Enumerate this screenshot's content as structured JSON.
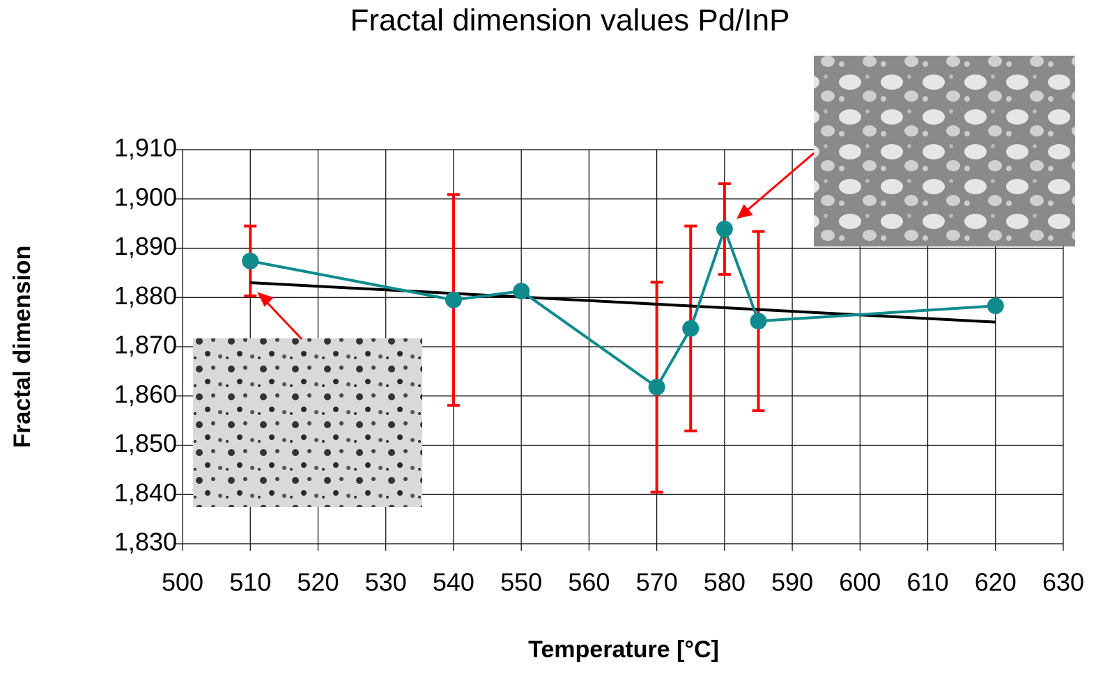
{
  "chart_data": {
    "type": "line",
    "title": "Fractal dimension values Pd/InP",
    "x_label": "Temperature [°C]",
    "y_label": "Fractal dimension",
    "x": [
      510,
      540,
      550,
      570,
      575,
      580,
      585,
      620
    ],
    "series": [
      {
        "color": "#0f8b8d",
        "values": [
          1.8874,
          1.8795,
          1.8813,
          1.8618,
          1.8737,
          1.8939,
          1.8752,
          1.8783
        ],
        "errors": [
          0.0071,
          0.0214,
          null,
          0.0213,
          0.0208,
          0.0092,
          0.0182,
          null
        ],
        "error_color": "#ff0000"
      }
    ],
    "trendline": {
      "color": "#000000",
      "x": [
        510,
        620
      ],
      "values": [
        1.883,
        1.875
      ]
    },
    "xlim": [
      500,
      630
    ],
    "xticks": [
      500,
      510,
      520,
      530,
      540,
      550,
      560,
      570,
      580,
      590,
      600,
      610,
      620,
      630
    ],
    "ylim": [
      1.83,
      1.91
    ],
    "yticks": [
      {
        "value": 1.83,
        "label": "1,830"
      },
      {
        "value": 1.84,
        "label": "1,840"
      },
      {
        "value": 1.85,
        "label": "1,850"
      },
      {
        "value": 1.86,
        "label": "1,860"
      },
      {
        "value": 1.87,
        "label": "1,870"
      },
      {
        "value": 1.88,
        "label": "1,880"
      },
      {
        "value": 1.89,
        "label": "1,890"
      },
      {
        "value": 1.9,
        "label": "1,900"
      },
      {
        "value": 1.91,
        "label": "1,910"
      }
    ],
    "grid": true
  }
}
